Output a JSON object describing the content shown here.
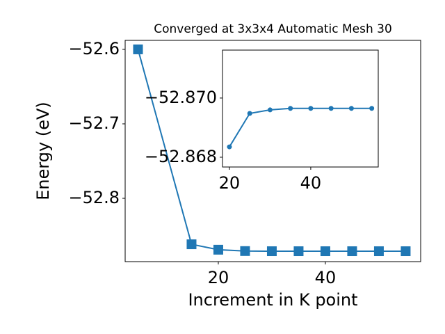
{
  "chart_data": [
    {
      "type": "line",
      "title": "Converged at 3x3x4 Automatic Mesh 30",
      "xlabel": "Increment in K point",
      "ylabel": "Energy (eV)",
      "x": [
        5,
        15,
        20,
        25,
        30,
        35,
        40,
        45,
        50,
        55
      ],
      "series": [
        {
          "color": "#1f77b4",
          "marker": "square",
          "values": [
            -52.6,
            -52.8617,
            -52.869,
            -52.8708,
            -52.871,
            -52.871,
            -52.871,
            -52.871,
            -52.871,
            -52.871
          ]
        }
      ],
      "xlim": [
        2.6,
        57.8
      ],
      "ylim": [
        -52.885,
        -52.5879
      ],
      "xticks": [
        20,
        40
      ],
      "yticks": [
        {
          "value": -52.6,
          "label": "−52.6"
        },
        {
          "value": -52.7,
          "label": "−52.7"
        },
        {
          "value": -52.8,
          "label": "−52.8"
        }
      ]
    },
    {
      "type": "line",
      "x": [
        20,
        25,
        30,
        35,
        40,
        45,
        50,
        55
      ],
      "series": [
        {
          "color": "#1f77b4",
          "marker": "circle",
          "values": [
            -52.86835,
            -52.86948,
            -52.8696,
            -52.86965,
            -52.86965,
            -52.86965,
            -52.86965,
            -52.86965
          ]
        }
      ],
      "xlim": [
        18.3,
        56.6
      ],
      "ylim": [
        -52.86767,
        -52.87162
      ],
      "xticks": [
        20,
        40
      ],
      "yticks": [
        {
          "value": -52.87,
          "label": "−52.870"
        },
        {
          "value": -52.868,
          "label": "−52.868"
        }
      ]
    }
  ]
}
